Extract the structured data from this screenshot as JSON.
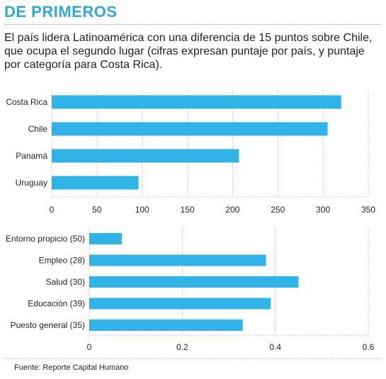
{
  "header": {
    "title": "DE PRIMEROS",
    "subtitle": "El país lidera Latinoamérica con una diferencia de 15 puntos sobre Chile, que ocupa el segundo lugar (cifras expresan puntaje por país, y puntaje por categoría para Costa Rica)."
  },
  "colors": {
    "bar": "#2fb3e8",
    "title": "#2fa8dc",
    "grid": "#a8a8a8"
  },
  "chart_data": [
    {
      "type": "bar",
      "orientation": "horizontal",
      "categories": [
        "Costa Rica",
        "Chile",
        "Panamá",
        "Uruguay"
      ],
      "values": [
        320,
        305,
        207,
        96
      ],
      "xlim": [
        0,
        350
      ],
      "xticks": [
        "0",
        "50",
        "100",
        "150",
        "200",
        "250",
        "300",
        "350"
      ],
      "xtick_values": [
        0,
        50,
        100,
        150,
        200,
        250,
        300,
        350
      ],
      "grid": "vertical dotted"
    },
    {
      "type": "bar",
      "orientation": "horizontal",
      "categories": [
        "Entorno propicio (50)",
        "Empleo (28)",
        "Salud (30)",
        "Educación (39)",
        "Puesto general (35)"
      ],
      "values": [
        0.07,
        0.38,
        0.45,
        0.39,
        0.33
      ],
      "xlim": [
        0,
        0.6
      ],
      "xticks": [
        "0",
        "0.2",
        "0.4",
        "0.6"
      ],
      "xtick_values": [
        0,
        0.2,
        0.4,
        0.6
      ],
      "grid": "vertical dotted"
    }
  ],
  "footer": {
    "source": "Fuente: Reporte Capital Humano"
  }
}
